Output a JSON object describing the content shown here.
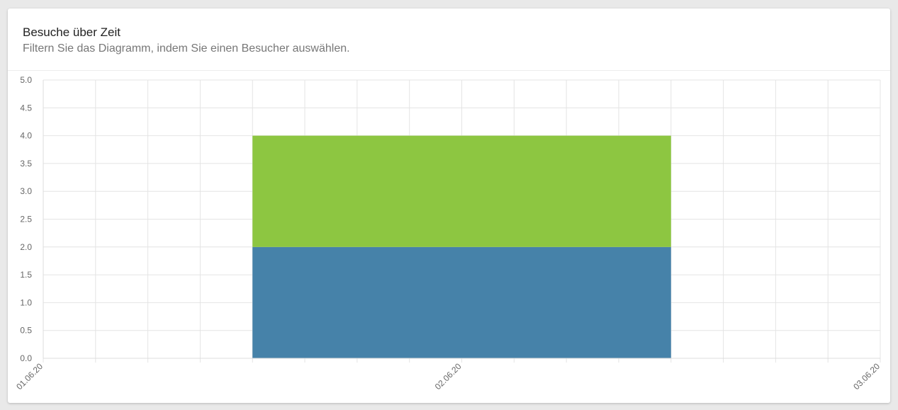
{
  "card": {
    "title": "Besuche über Zeit",
    "subtitle": "Filtern Sie das Diagramm, indem Sie einen Besucher auswählen."
  },
  "chart_data": {
    "type": "bar",
    "stacked": true,
    "title": "",
    "xlabel": "",
    "ylabel": "",
    "ylim": [
      0,
      5
    ],
    "y_ticks": [
      "0.0",
      "0.5",
      "1.0",
      "1.5",
      "2.0",
      "2.5",
      "3.0",
      "3.5",
      "4.0",
      "4.5",
      "5.0"
    ],
    "x_ticks": [
      "01.06.20",
      "02.06.20",
      "03.06.20"
    ],
    "grid": true,
    "legend": "none",
    "bar_span": [
      "01.06.20 12:00",
      "02.06.20 12:00"
    ],
    "series": [
      {
        "values": [
          2
        ],
        "color": "#4682a9"
      },
      {
        "values": [
          2
        ],
        "color": "#8dc641"
      }
    ]
  }
}
